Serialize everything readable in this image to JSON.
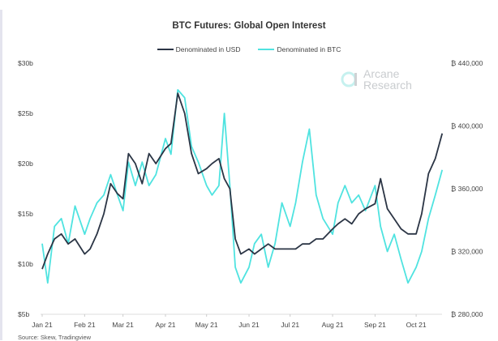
{
  "chart_data": {
    "type": "line",
    "title": "BTC Futures: Global Open Interest",
    "source": "Source: Skew, Tradingview",
    "watermark": "Arcane\nResearch",
    "legend_placement": "top",
    "grid": false,
    "x_ticks": [
      "Jan 21",
      "Feb 21",
      "Mar 21",
      "Apr 21",
      "May 21",
      "Jun 21",
      "Jul 21",
      "Aug 21",
      "Sep 21",
      "Oct 21"
    ],
    "x_tick_dates": [
      "2021-01-01",
      "2021-02-01",
      "2021-03-01",
      "2021-04-01",
      "2021-05-01",
      "2021-06-01",
      "2021-07-01",
      "2021-08-01",
      "2021-09-01",
      "2021-10-01"
    ],
    "y_left": {
      "range": [
        5,
        30
      ],
      "ticks": [
        5,
        10,
        15,
        20,
        25,
        30
      ],
      "tick_labels": [
        "$5b",
        "$10b",
        "$15b",
        "$20b",
        "$25b",
        "$30b"
      ]
    },
    "y_right": {
      "range": [
        280000,
        440000
      ],
      "ticks": [
        280000,
        320000,
        360000,
        400000,
        440000
      ],
      "tick_labels": [
        "₿ 280,000",
        "₿ 320,000",
        "₿ 360,000",
        "₿ 400,000",
        "₿ 440,000"
      ]
    },
    "dates": [
      "2021-01-01",
      "2021-01-05",
      "2021-01-10",
      "2021-01-15",
      "2021-01-20",
      "2021-01-25",
      "2021-02-01",
      "2021-02-05",
      "2021-02-10",
      "2021-02-15",
      "2021-02-20",
      "2021-02-25",
      "2021-03-01",
      "2021-03-05",
      "2021-03-10",
      "2021-03-15",
      "2021-03-20",
      "2021-03-25",
      "2021-04-01",
      "2021-04-05",
      "2021-04-10",
      "2021-04-15",
      "2021-04-20",
      "2021-04-25",
      "2021-05-01",
      "2021-05-05",
      "2021-05-10",
      "2021-05-14",
      "2021-05-18",
      "2021-05-22",
      "2021-05-26",
      "2021-06-01",
      "2021-06-05",
      "2021-06-10",
      "2021-06-15",
      "2021-06-20",
      "2021-06-25",
      "2021-07-01",
      "2021-07-05",
      "2021-07-10",
      "2021-07-15",
      "2021-07-20",
      "2021-07-25",
      "2021-08-01",
      "2021-08-05",
      "2021-08-10",
      "2021-08-15",
      "2021-08-20",
      "2021-08-25",
      "2021-09-01",
      "2021-09-05",
      "2021-09-10",
      "2021-09-15",
      "2021-09-20",
      "2021-09-25",
      "2021-10-01",
      "2021-10-05",
      "2021-10-10",
      "2021-10-15",
      "2021-10-20"
    ],
    "series": [
      {
        "name": "Denominated in USD",
        "axis": "left",
        "unit": "$b",
        "color": "#2b3545",
        "values": [
          9.5,
          11,
          12.5,
          13,
          12,
          12.5,
          11,
          11.5,
          13,
          15,
          18,
          17,
          16.5,
          21,
          20,
          18,
          21,
          20,
          21.5,
          22,
          27,
          25,
          21,
          19,
          19.5,
          20,
          20.5,
          18.5,
          17.5,
          12.5,
          11,
          11.5,
          11,
          11.5,
          12,
          11.5,
          11.5,
          11.5,
          11.5,
          12,
          12,
          12.5,
          12.5,
          13.5,
          14,
          14.5,
          14,
          15,
          15.5,
          16,
          18.5,
          15.5,
          14.5,
          13.5,
          13,
          13,
          15,
          19,
          20.5,
          23
        ]
      },
      {
        "name": "Denominated in BTC",
        "axis": "right",
        "unit": "BTC",
        "color": "#4fe3e0",
        "values": [
          325000,
          300000,
          336000,
          341000,
          325000,
          349000,
          331000,
          341000,
          351000,
          356000,
          369000,
          356000,
          346000,
          377000,
          362000,
          377000,
          362000,
          369000,
          392000,
          382000,
          423000,
          418000,
          387000,
          377000,
          362000,
          356000,
          362000,
          408000,
          362000,
          310000,
          300000,
          310000,
          325000,
          331000,
          310000,
          325000,
          351000,
          336000,
          351000,
          377000,
          398000,
          356000,
          341000,
          331000,
          351000,
          362000,
          351000,
          356000,
          346000,
          362000,
          336000,
          320000,
          331000,
          315000,
          300000,
          310000,
          320000,
          341000,
          356000,
          372000
        ]
      }
    ]
  }
}
